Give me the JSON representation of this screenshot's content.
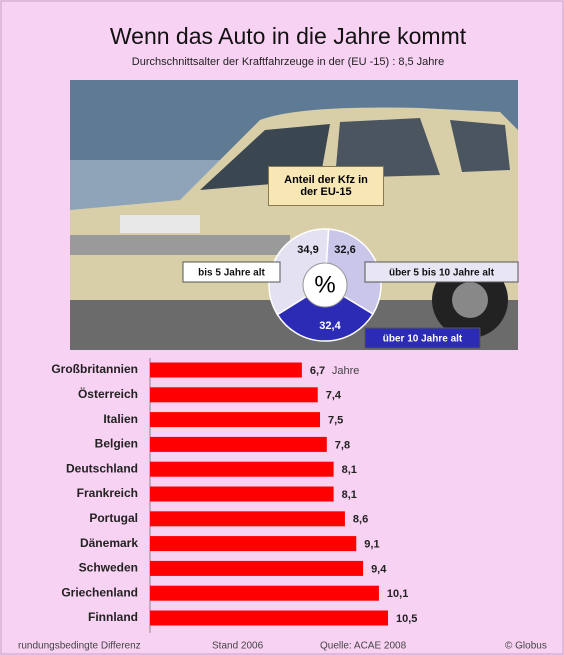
{
  "header": {
    "title": "Wenn das Auto in die Jahre kommt",
    "subtitle": "Durchschnittsalter der Kraftfahrzeuge in der (EU -15) : 8,5 Jahre"
  },
  "chart_data": [
    {
      "type": "pie",
      "title": "Anteil der Kfz in der EU-15",
      "center_label": "%",
      "categories": [
        "bis 5 Jahre alt",
        "über 5 bis 10 Jahre alt",
        "über 10 Jahre alt"
      ],
      "values": [
        34.9,
        32.6,
        32.4
      ],
      "value_labels": [
        "34,9",
        "32,6",
        "32,4"
      ],
      "colors": [
        "#e4e2f2",
        "#c9c6ea",
        "#2b2bb5"
      ]
    },
    {
      "type": "bar",
      "orientation": "horizontal",
      "categories": [
        "Großbritannien",
        "Österreich",
        "Italien",
        "Belgien",
        "Deutschland",
        "Frankreich",
        "Portugal",
        "Dänemark",
        "Schweden",
        "Griechenland",
        "Finnland"
      ],
      "values": [
        6.7,
        7.4,
        7.5,
        7.8,
        8.1,
        8.1,
        8.6,
        9.1,
        9.4,
        10.1,
        10.5
      ],
      "value_labels": [
        "6,7",
        "7,4",
        "7,5",
        "7,8",
        "8,1",
        "8,1",
        "8,6",
        "9,1",
        "9,4",
        "10,1",
        "10,5"
      ],
      "unit": "Jahre",
      "color": "#ff0000",
      "xlim": [
        0,
        12
      ]
    }
  ],
  "footer": [
    "rundungsbedingte Differenz",
    "Stand 2006",
    "Quelle: ACAE 2008",
    "© Globus"
  ]
}
